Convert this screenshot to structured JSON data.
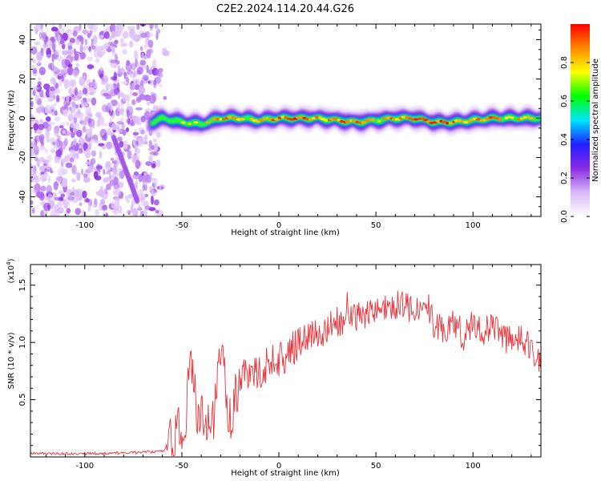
{
  "title": "C2E2.2024.114.20.44.G26",
  "colors": {
    "frame": "#000000",
    "snr_line": "#e8343a",
    "spectrum_ridge": "#ff2a1a"
  },
  "chart_data": [
    {
      "type": "heatmap",
      "xlabel": "Height of straight line (km)",
      "ylabel": "Frequency (Hz)",
      "xlim": [
        -128,
        135
      ],
      "ylim": [
        -50,
        48
      ],
      "xticks": [
        -100,
        -50,
        0,
        50,
        100
      ],
      "yticks": [
        -40,
        -20,
        0,
        20,
        40
      ],
      "grid": false,
      "colorbar": {
        "label": "Normalized spectral amplitude",
        "range": [
          0,
          1
        ],
        "ticks": [
          "0.0",
          "0.2",
          "0.4",
          "0.6",
          "0.8"
        ],
        "colormap": [
          "#ffffff",
          "#d8b8f8",
          "#8a2be2",
          "#1f1fff",
          "#00e5ff",
          "#00ff00",
          "#ffff00",
          "#ff8800",
          "#ff0000"
        ]
      },
      "noise_region_km": [
        -128,
        -62
      ],
      "ridge": [
        {
          "x": -68,
          "y": -3,
          "amp": 0.35
        },
        {
          "x": -60,
          "y": 0,
          "amp": 0.5
        },
        {
          "x": -50,
          "y": -2,
          "amp": 0.55
        },
        {
          "x": -40,
          "y": -3,
          "amp": 0.6
        },
        {
          "x": -30,
          "y": 0,
          "amp": 0.75
        },
        {
          "x": -20,
          "y": 0,
          "amp": 0.7
        },
        {
          "x": -10,
          "y": -1,
          "amp": 0.65
        },
        {
          "x": 0,
          "y": 0,
          "amp": 0.75
        },
        {
          "x": 10,
          "y": 0,
          "amp": 0.8
        },
        {
          "x": 20,
          "y": 0,
          "amp": 0.7
        },
        {
          "x": 30,
          "y": -1,
          "amp": 0.75
        },
        {
          "x": 40,
          "y": -2,
          "amp": 0.8
        },
        {
          "x": 50,
          "y": -1,
          "amp": 0.7
        },
        {
          "x": 60,
          "y": 0,
          "amp": 0.75
        },
        {
          "x": 70,
          "y": 0,
          "amp": 0.8
        },
        {
          "x": 80,
          "y": -2,
          "amp": 0.85
        },
        {
          "x": 90,
          "y": -2,
          "amp": 0.75
        },
        {
          "x": 100,
          "y": -1,
          "amp": 0.7
        },
        {
          "x": 110,
          "y": 0,
          "amp": 0.75
        },
        {
          "x": 120,
          "y": 0,
          "amp": 0.7
        },
        {
          "x": 130,
          "y": 0,
          "amp": 0.65
        }
      ]
    },
    {
      "type": "line",
      "xlabel": "Height of straight line (km)",
      "ylabel": "SNR (10 * v/v)",
      "ymultiplier": "(x10",
      "ymultiplier_exp": "4",
      "ymultiplier_close": ")",
      "xlim": [
        -128,
        135
      ],
      "ylim": [
        0,
        1.68
      ],
      "xticks": [
        -100,
        -50,
        0,
        50,
        100
      ],
      "yticks": [
        0.5,
        1.0,
        1.5
      ],
      "ytick_labels": [
        "0.5",
        "1.0",
        "1.5"
      ],
      "grid": false,
      "series": [
        {
          "x": [
            -128,
            -110,
            -90,
            -70,
            -60,
            -55,
            -52,
            -48,
            -45,
            -42,
            -38,
            -35,
            -30,
            -25,
            -22,
            -18,
            -15,
            -10,
            -5,
            0,
            5,
            10,
            15,
            20,
            25,
            30,
            35,
            40,
            45,
            50,
            55,
            60,
            65,
            70,
            75,
            80,
            85,
            90,
            95,
            100,
            105,
            110,
            115,
            120,
            125,
            130,
            134
          ],
          "y": [
            0.03,
            0.03,
            0.03,
            0.04,
            0.05,
            0.14,
            0.22,
            0.35,
            0.9,
            0.3,
            0.4,
            0.15,
            0.95,
            0.3,
            0.55,
            0.7,
            0.72,
            0.75,
            0.82,
            0.85,
            0.9,
            1.0,
            1.05,
            1.08,
            1.1,
            1.18,
            1.2,
            1.22,
            1.25,
            1.28,
            1.3,
            1.32,
            1.35,
            1.25,
            1.4,
            1.15,
            1.1,
            1.2,
            1.05,
            1.2,
            1.1,
            1.15,
            1.05,
            1.0,
            1.05,
            0.95,
            0.85
          ]
        }
      ]
    }
  ]
}
